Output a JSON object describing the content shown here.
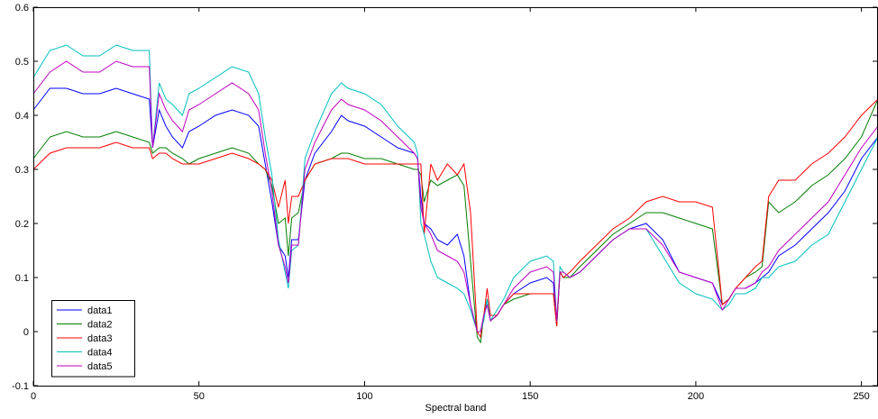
{
  "chart_data": {
    "type": "line",
    "title": "",
    "xlabel": "Spectral band",
    "ylabel": "",
    "xlim": [
      0,
      255
    ],
    "ylim": [
      -0.1,
      0.6
    ],
    "xticks": [
      0,
      50,
      100,
      150,
      200,
      250
    ],
    "yticks": [
      -0.1,
      0,
      0.1,
      0.2,
      0.3,
      0.4,
      0.5,
      0.6
    ],
    "grid": false,
    "legend_position": "bottom-left",
    "colors": {
      "data1": "#0000ff",
      "data2": "#008000",
      "data3": "#ff0000",
      "data4": "#00bfbf",
      "data5": "#bf00bf"
    },
    "x": [
      0,
      5,
      10,
      15,
      20,
      25,
      30,
      35,
      36,
      38,
      40,
      42,
      45,
      47,
      50,
      55,
      60,
      65,
      68,
      70,
      72,
      74,
      76,
      77,
      78,
      80,
      82,
      85,
      90,
      93,
      95,
      100,
      105,
      110,
      115,
      116,
      117,
      118,
      120,
      122,
      125,
      128,
      130,
      132,
      134,
      135,
      136,
      137,
      138,
      140,
      142,
      145,
      150,
      155,
      157,
      158,
      159,
      160,
      162,
      165,
      170,
      175,
      180,
      185,
      190,
      195,
      200,
      205,
      208,
      210,
      212,
      215,
      218,
      220,
      222,
      225,
      230,
      235,
      240,
      245,
      250,
      255
    ],
    "series": [
      {
        "name": "data1",
        "values": [
          0.41,
          0.45,
          0.45,
          0.44,
          0.44,
          0.45,
          0.44,
          0.43,
          0.34,
          0.41,
          0.38,
          0.36,
          0.34,
          0.37,
          0.38,
          0.4,
          0.41,
          0.4,
          0.38,
          0.31,
          0.24,
          0.16,
          0.14,
          0.1,
          0.17,
          0.17,
          0.28,
          0.33,
          0.37,
          0.4,
          0.39,
          0.38,
          0.36,
          0.34,
          0.33,
          0.32,
          0.25,
          0.2,
          0.19,
          0.17,
          0.16,
          0.18,
          0.14,
          0.05,
          0.0,
          0.0,
          0.03,
          0.05,
          0.02,
          0.03,
          0.05,
          0.07,
          0.09,
          0.1,
          0.09,
          0.01,
          0.11,
          0.1,
          0.1,
          0.11,
          0.14,
          0.17,
          0.19,
          0.2,
          0.17,
          0.11,
          0.1,
          0.09,
          0.05,
          0.06,
          0.08,
          0.08,
          0.09,
          0.1,
          0.11,
          0.14,
          0.16,
          0.19,
          0.22,
          0.26,
          0.32,
          0.36
        ]
      },
      {
        "name": "data2",
        "values": [
          0.32,
          0.36,
          0.37,
          0.36,
          0.36,
          0.37,
          0.36,
          0.35,
          0.33,
          0.34,
          0.34,
          0.33,
          0.32,
          0.31,
          0.32,
          0.33,
          0.34,
          0.33,
          0.31,
          0.3,
          0.27,
          0.2,
          0.21,
          0.14,
          0.21,
          0.22,
          0.28,
          0.31,
          0.32,
          0.33,
          0.33,
          0.32,
          0.32,
          0.31,
          0.3,
          0.3,
          0.29,
          0.24,
          0.28,
          0.27,
          0.28,
          0.29,
          0.27,
          0.13,
          -0.01,
          -0.02,
          0.03,
          0.06,
          0.02,
          0.03,
          0.05,
          0.06,
          0.07,
          0.07,
          0.07,
          0.01,
          0.11,
          0.1,
          0.1,
          0.12,
          0.15,
          0.18,
          0.2,
          0.22,
          0.22,
          0.21,
          0.2,
          0.19,
          0.05,
          0.06,
          0.08,
          0.1,
          0.11,
          0.12,
          0.24,
          0.22,
          0.24,
          0.27,
          0.29,
          0.32,
          0.36,
          0.43
        ]
      },
      {
        "name": "data3",
        "values": [
          0.3,
          0.33,
          0.34,
          0.34,
          0.34,
          0.35,
          0.34,
          0.34,
          0.32,
          0.33,
          0.33,
          0.32,
          0.31,
          0.31,
          0.31,
          0.32,
          0.33,
          0.32,
          0.31,
          0.3,
          0.28,
          0.23,
          0.28,
          0.2,
          0.25,
          0.25,
          0.28,
          0.31,
          0.32,
          0.32,
          0.32,
          0.31,
          0.31,
          0.31,
          0.31,
          0.31,
          0.31,
          0.18,
          0.31,
          0.28,
          0.31,
          0.29,
          0.31,
          0.22,
          0.0,
          -0.01,
          0.03,
          0.08,
          0.03,
          0.03,
          0.05,
          0.07,
          0.07,
          0.07,
          0.07,
          0.01,
          0.11,
          0.1,
          0.11,
          0.13,
          0.16,
          0.19,
          0.21,
          0.24,
          0.25,
          0.24,
          0.24,
          0.23,
          0.05,
          0.06,
          0.08,
          0.1,
          0.12,
          0.13,
          0.25,
          0.28,
          0.28,
          0.31,
          0.33,
          0.36,
          0.4,
          0.43
        ]
      },
      {
        "name": "data4",
        "values": [
          0.47,
          0.52,
          0.53,
          0.51,
          0.51,
          0.53,
          0.52,
          0.52,
          0.34,
          0.46,
          0.43,
          0.42,
          0.4,
          0.44,
          0.45,
          0.47,
          0.49,
          0.48,
          0.44,
          0.36,
          0.29,
          0.17,
          0.11,
          0.08,
          0.15,
          0.16,
          0.32,
          0.37,
          0.44,
          0.46,
          0.45,
          0.44,
          0.42,
          0.38,
          0.35,
          0.33,
          0.2,
          0.18,
          0.13,
          0.1,
          0.09,
          0.08,
          0.07,
          0.04,
          0.0,
          0.0,
          0.02,
          0.06,
          0.02,
          0.04,
          0.06,
          0.1,
          0.13,
          0.14,
          0.13,
          0.02,
          0.12,
          0.11,
          0.1,
          0.11,
          0.14,
          0.17,
          0.19,
          0.19,
          0.14,
          0.09,
          0.07,
          0.06,
          0.04,
          0.05,
          0.07,
          0.07,
          0.08,
          0.1,
          0.1,
          0.12,
          0.13,
          0.16,
          0.18,
          0.24,
          0.3,
          0.36
        ]
      },
      {
        "name": "data5",
        "values": [
          0.44,
          0.48,
          0.5,
          0.48,
          0.48,
          0.5,
          0.49,
          0.49,
          0.34,
          0.44,
          0.41,
          0.39,
          0.37,
          0.41,
          0.42,
          0.44,
          0.46,
          0.44,
          0.41,
          0.33,
          0.26,
          0.16,
          0.12,
          0.09,
          0.16,
          0.16,
          0.3,
          0.35,
          0.41,
          0.43,
          0.42,
          0.41,
          0.39,
          0.36,
          0.33,
          0.32,
          0.23,
          0.2,
          0.18,
          0.15,
          0.14,
          0.13,
          0.11,
          0.05,
          0.0,
          0.0,
          0.03,
          0.05,
          0.02,
          0.03,
          0.05,
          0.08,
          0.11,
          0.12,
          0.11,
          0.02,
          0.11,
          0.11,
          0.1,
          0.11,
          0.14,
          0.17,
          0.19,
          0.19,
          0.16,
          0.11,
          0.1,
          0.09,
          0.04,
          0.06,
          0.08,
          0.08,
          0.09,
          0.11,
          0.12,
          0.15,
          0.18,
          0.21,
          0.24,
          0.29,
          0.34,
          0.38
        ]
      }
    ]
  }
}
